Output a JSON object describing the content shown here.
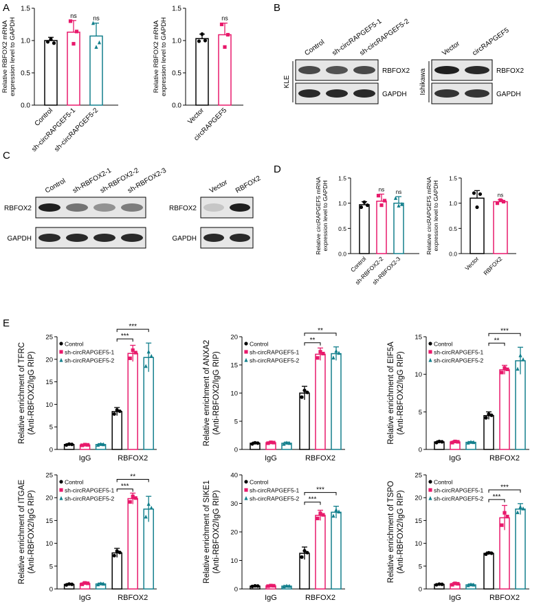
{
  "panels": {
    "A": "A",
    "B": "B",
    "C": "C",
    "D": "D",
    "E": "E"
  },
  "colors": {
    "control": "#000000",
    "pink": "#e8196b",
    "teal": "#127f8c",
    "gray": "#444444"
  },
  "significance": {
    "ns": "ns",
    "p3": "***",
    "p2": "**"
  },
  "chart_data": [
    {
      "id": "A1",
      "type": "bar",
      "categories": [
        "Control",
        "sh-circRAPGEF5-1",
        "sh-circRAPGEF5-2"
      ],
      "values": [
        1.0,
        1.13,
        1.07
      ],
      "errors": [
        0.05,
        0.18,
        0.2
      ],
      "points": [
        [
          0.98,
          1.02,
          0.96
        ],
        [
          1.3,
          0.95,
          1.14
        ],
        [
          1.27,
          0.9,
          0.97
        ]
      ],
      "sig": [
        "",
        "ns",
        "ns"
      ],
      "ylabel": [
        "Relative RBFOX2 mRNA",
        "expression level to GAPDH"
      ],
      "ylim": [
        0,
        1.5
      ],
      "yticks": [
        "0.0",
        "0.5",
        "1.0",
        "1.5"
      ],
      "colors": [
        "control",
        "pink",
        "teal"
      ]
    },
    {
      "id": "A2",
      "type": "bar",
      "categories": [
        "Vector",
        "circRAPGEF5"
      ],
      "values": [
        1.03,
        1.09
      ],
      "errors": [
        0.07,
        0.18
      ],
      "points": [
        [
          0.99,
          1.1,
          1.0
        ],
        [
          1.25,
          0.9,
          1.09
        ]
      ],
      "sig": [
        "",
        "ns"
      ],
      "ylabel": [
        "Relative RBFOX2 mRNA",
        "expression level to GAPDH"
      ],
      "ylim": [
        0,
        1.5
      ],
      "yticks": [
        "0.0",
        "0.5",
        "1.0",
        "1.5"
      ],
      "colors": [
        "control",
        "pink"
      ]
    },
    {
      "id": "D1",
      "type": "bar",
      "categories": [
        "Control",
        "sh-RBFOX2-2",
        "sh-RBFOX2-3"
      ],
      "values": [
        0.97,
        1.04,
        1.0
      ],
      "errors": [
        0.06,
        0.14,
        0.13
      ],
      "points": [
        [
          0.92,
          1.02,
          0.96
        ],
        [
          1.15,
          0.96,
          1.05
        ],
        [
          1.1,
          0.95,
          0.98
        ]
      ],
      "sig": [
        "",
        "ns",
        "ns"
      ],
      "ylabel": [
        "Relative circRAPGEF5 mRNA",
        "expression level to GAPDH"
      ],
      "ylim": [
        0,
        1.5
      ],
      "yticks": [
        "0.0",
        "0.5",
        "1.0",
        "1.5"
      ],
      "colors": [
        "control",
        "pink",
        "teal"
      ]
    },
    {
      "id": "D2",
      "type": "bar",
      "categories": [
        "Vector",
        "RBFOX2"
      ],
      "values": [
        1.1,
        1.03
      ],
      "errors": [
        0.15,
        0.04
      ],
      "points": [
        [
          1.2,
          0.92,
          1.18
        ],
        [
          1.0,
          1.06,
          1.03
        ]
      ],
      "sig": [
        "",
        "ns"
      ],
      "ylabel": [
        "Relative circRAPGEF5 mRNA",
        "expression level to GAPDH"
      ],
      "ylim": [
        0,
        1.5
      ],
      "yticks": [
        "0.0",
        "0.5",
        "1.0",
        "1.5"
      ],
      "colors": [
        "control",
        "pink"
      ]
    },
    {
      "id": "E1",
      "type": "grouped-bar",
      "groups": [
        "IgG",
        "RBFOX2"
      ],
      "legend": [
        "Control",
        "sh-circRAPGEF5-1",
        "sh-circRAPGEF5-2"
      ],
      "values": [
        [
          1.1,
          1.0,
          1.1
        ],
        [
          8.4,
          21.3,
          20.4
        ]
      ],
      "errors": [
        [
          0.2,
          0.15,
          0.2
        ],
        [
          0.9,
          1.8,
          3.2
        ]
      ],
      "sig": [
        {
          "a": 0,
          "b": 1,
          "label": "p3"
        },
        {
          "a": 0,
          "b": 2,
          "label": "p3"
        }
      ],
      "ylabel": [
        "Relative enrichment of TFRC",
        "(Anti-RBFOX2/IgG RIP)"
      ],
      "ylim": [
        0,
        25
      ],
      "yticks": [
        "0",
        "5",
        "10",
        "15",
        "20",
        "25"
      ]
    },
    {
      "id": "E2",
      "type": "grouped-bar",
      "groups": [
        "IgG",
        "RBFOX2"
      ],
      "legend": [
        "Control",
        "sh-circRAPGEF5-1",
        "sh-circRAPGEF5-2"
      ],
      "values": [
        [
          1.1,
          1.2,
          1.1
        ],
        [
          10.0,
          16.9,
          17.0
        ]
      ],
      "errors": [
        [
          0.2,
          0.15,
          0.2
        ],
        [
          1.2,
          1.1,
          1.2
        ]
      ],
      "sig": [
        {
          "a": 0,
          "b": 1,
          "label": "p2"
        },
        {
          "a": 0,
          "b": 2,
          "label": "p2"
        }
      ],
      "ylabel": [
        "Relative enrichment of ANXA2",
        "(Anti-RBFOX2/IgG RIP)"
      ],
      "ylim": [
        0,
        20
      ],
      "yticks": [
        "0",
        "5",
        "10",
        "15",
        "20"
      ]
    },
    {
      "id": "E3",
      "type": "grouped-bar",
      "groups": [
        "IgG",
        "RBFOX2"
      ],
      "legend": [
        "Control",
        "sh-circRAPGEF5-1",
        "sh-circRAPGEF5-2"
      ],
      "values": [
        [
          1.0,
          1.0,
          0.95
        ],
        [
          4.5,
          10.6,
          11.8
        ]
      ],
      "errors": [
        [
          0.15,
          0.15,
          0.1
        ],
        [
          0.5,
          0.6,
          1.8
        ]
      ],
      "sig": [
        {
          "a": 0,
          "b": 1,
          "label": "p2"
        },
        {
          "a": 0,
          "b": 2,
          "label": "p3"
        }
      ],
      "ylabel": [
        "Relative enrichment of EIF5A",
        "(Anti-RBFOX2/IgG RIP)"
      ],
      "ylim": [
        0,
        15
      ],
      "yticks": [
        "0",
        "5",
        "10",
        "15"
      ]
    },
    {
      "id": "E4",
      "type": "grouped-bar",
      "groups": [
        "IgG",
        "RBFOX2"
      ],
      "legend": [
        "Control",
        "sh-circRAPGEF5-1",
        "sh-circRAPGEF5-2"
      ],
      "values": [
        [
          1.0,
          1.2,
          1.1
        ],
        [
          7.9,
          19.8,
          17.5
        ]
      ],
      "errors": [
        [
          0.2,
          0.3,
          0.2
        ],
        [
          1.0,
          1.2,
          2.8
        ]
      ],
      "sig": [
        {
          "a": 0,
          "b": 1,
          "label": "p3"
        },
        {
          "a": 0,
          "b": 2,
          "label": "p2"
        }
      ],
      "ylabel": [
        "Relative enrichment of ITGAE",
        "(Anti-RBFOX2/IgG RIP)"
      ],
      "ylim": [
        0,
        25
      ],
      "yticks": [
        "0",
        "5",
        "10",
        "15",
        "20",
        "25"
      ]
    },
    {
      "id": "E5",
      "type": "grouped-bar",
      "groups": [
        "IgG",
        "RBFOX2"
      ],
      "legend": [
        "Control",
        "sh-circRAPGEF5-1",
        "sh-circRAPGEF5-2"
      ],
      "values": [
        [
          1.0,
          1.1,
          1.0
        ],
        [
          12.5,
          25.8,
          26.9
        ]
      ],
      "errors": [
        [
          0.2,
          0.2,
          0.2
        ],
        [
          2.2,
          1.8,
          2.1
        ]
      ],
      "sig": [
        {
          "a": 0,
          "b": 1,
          "label": "p3"
        },
        {
          "a": 0,
          "b": 2,
          "label": "p3"
        }
      ],
      "ylabel": [
        "Relative enrichment of SIKE1",
        "(Anti-RBFOX2/IgG RIP)"
      ],
      "ylim": [
        0,
        40
      ],
      "yticks": [
        "0",
        "10",
        "20",
        "30",
        "40"
      ]
    },
    {
      "id": "E6",
      "type": "grouped-bar",
      "groups": [
        "IgG",
        "RBFOX2"
      ],
      "legend": [
        "Control",
        "sh-circRAPGEF5-1",
        "sh-circRAPGEF5-2"
      ],
      "values": [
        [
          1.0,
          1.1,
          0.9
        ],
        [
          7.8,
          15.6,
          17.5
        ]
      ],
      "errors": [
        [
          0.15,
          0.3,
          0.2
        ],
        [
          0.3,
          2.7,
          1.2
        ]
      ],
      "sig": [
        {
          "a": 0,
          "b": 1,
          "label": "p3"
        },
        {
          "a": 0,
          "b": 2,
          "label": "p3"
        }
      ],
      "ylabel": [
        "Relative enrichment of TSPO",
        "(Anti-RBFOX2/IgG RIP)"
      ],
      "ylim": [
        0,
        25
      ],
      "yticks": [
        "0",
        "5",
        "10",
        "15",
        "20",
        "25"
      ]
    }
  ],
  "blots": {
    "B1": {
      "cell": "KLE",
      "lanes": [
        "Control",
        "sh-circRAPGEF5-1",
        "sh-circRAPGEF5-2"
      ],
      "targets": [
        "RBFOX2",
        "GAPDH"
      ]
    },
    "B2": {
      "cell": "Ishikawa",
      "lanes": [
        "Vector",
        "circRAPGEF5"
      ],
      "targets": [
        "RBFOX2",
        "GAPDH"
      ]
    },
    "C1": {
      "lanes": [
        "Control",
        "sh-RBFOX2-1",
        "sh-RBFOX2-2",
        "sh-RBFOX2-3"
      ],
      "targets": [
        "RBFOX2",
        "GAPDH"
      ]
    },
    "C2": {
      "lanes": [
        "Vector",
        "RBFOX2"
      ],
      "targets": [
        "RBFOX2",
        "GAPDH"
      ]
    }
  }
}
